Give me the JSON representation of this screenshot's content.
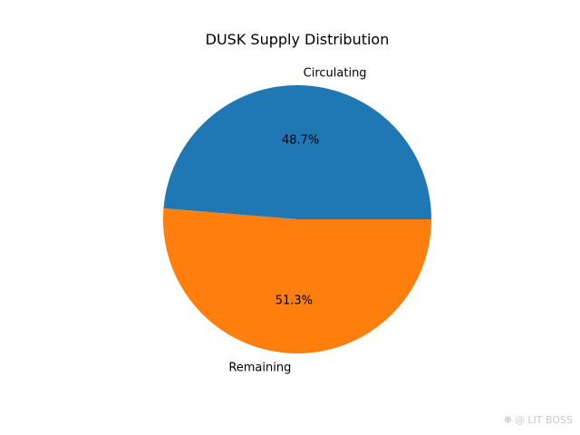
{
  "chart_data": {
    "type": "pie",
    "title": "DUSK Supply Distribution",
    "categories": [
      "Circulating",
      "Remaining"
    ],
    "values": [
      48.7,
      51.3
    ],
    "percent_labels": [
      "48.7%",
      "51.3%"
    ],
    "colors": [
      "#1f77b4",
      "#ff7f0e"
    ],
    "start_angle_deg": 0,
    "direction": "counterclockwise",
    "legend": "none"
  },
  "watermark": {
    "text": "@ LIT BOSS",
    "icon": "leaf-logo-icon"
  }
}
